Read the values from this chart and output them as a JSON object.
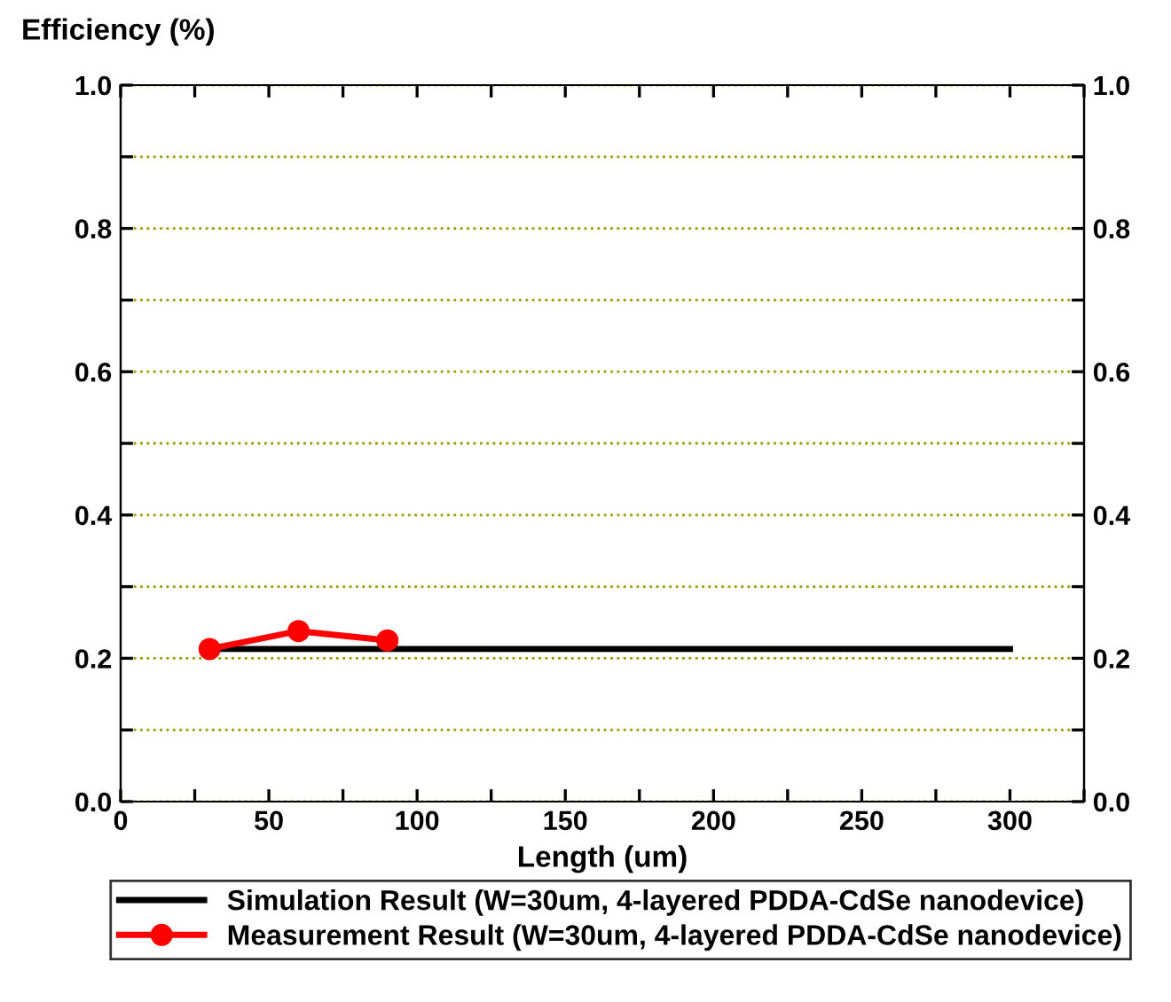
{
  "chart_data": {
    "type": "line",
    "ylabel": "Efficiency (%)",
    "xlabel": "Length (um)",
    "xlim": [
      0,
      325
    ],
    "xticks": [
      0,
      {
        "value": 25,
        "label": null
      },
      50,
      {
        "value": 75,
        "label": null
      },
      100,
      {
        "value": 125,
        "label": null
      },
      150,
      {
        "value": 175,
        "label": null
      },
      200,
      {
        "value": 225,
        "label": null
      },
      250,
      {
        "value": 275,
        "label": null
      },
      300,
      {
        "value": 325,
        "label": null
      }
    ],
    "ylim": [
      0,
      1
    ],
    "yticks": [
      {
        "value": 0,
        "label": "0.0"
      },
      {
        "value": 0.1,
        "label": null
      },
      {
        "value": 0.2,
        "label": "0.2"
      },
      {
        "value": 0.3,
        "label": null
      },
      {
        "value": 0.4,
        "label": "0.4"
      },
      {
        "value": 0.5,
        "label": null
      },
      {
        "value": 0.6,
        "label": "0.6"
      },
      {
        "value": 0.7,
        "label": null
      },
      {
        "value": 0.8,
        "label": "0.8"
      },
      {
        "value": 0.9,
        "label": null
      },
      {
        "value": 1,
        "label": "1.0"
      }
    ],
    "y2lim": [
      0,
      1
    ],
    "y2ticks": [
      {
        "value": 0,
        "label": "0.0"
      },
      {
        "value": 0.1,
        "label": null
      },
      {
        "value": 0.2,
        "label": "0.2"
      },
      {
        "value": 0.3,
        "label": null
      },
      {
        "value": 0.4,
        "label": "0.4"
      },
      {
        "value": 0.5,
        "label": null
      },
      {
        "value": 0.6,
        "label": "0.6"
      },
      {
        "value": 0.7,
        "label": null
      },
      {
        "value": 0.8,
        "label": "0.8"
      },
      {
        "value": 0.9,
        "label": null
      },
      {
        "value": 1,
        "label": "1.0"
      }
    ],
    "grid": "y",
    "legend": "bottom",
    "series": [
      {
        "name": "Simulation Result (W=30um, 4-layered PDDA-CdSe nanodevice)",
        "color": "#000000",
        "x": [
          30,
          300
        ],
        "values": [
          0.213,
          0.213
        ],
        "marker": "none"
      },
      {
        "name": "Measurement Result (W=30um, 4-layered PDDA-CdSe nanodevice)",
        "color": "#ff0000",
        "x": [
          30,
          60,
          90
        ],
        "values": [
          0.213,
          0.238,
          0.225
        ],
        "marker": "circle"
      }
    ]
  }
}
